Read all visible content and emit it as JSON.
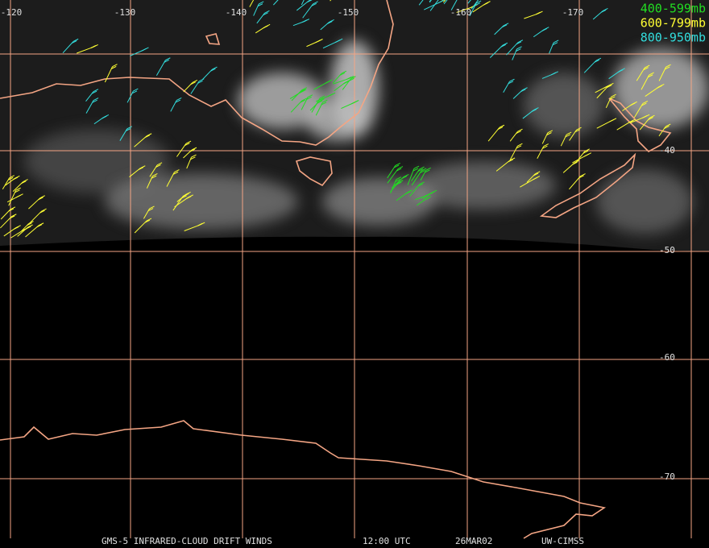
{
  "map": {
    "longitude_labels": [
      "-120",
      "-130",
      "-140",
      "-150",
      "-160",
      "-170"
    ],
    "latitude_labels": [
      "-40",
      "-50",
      "-60",
      "-70"
    ],
    "legend": [
      {
        "label": "400-599mb",
        "color": "#22dd22"
      },
      {
        "label": "600-799mb",
        "color": "#ffff33"
      },
      {
        "label": "800-950mb",
        "color": "#33dddd"
      }
    ],
    "footer": [
      "GMS-5 INFRARED-CLOUD DRIFT WINDS",
      "12:00 UTC",
      "26MAR02",
      "UW-CIMSS"
    ]
  }
}
